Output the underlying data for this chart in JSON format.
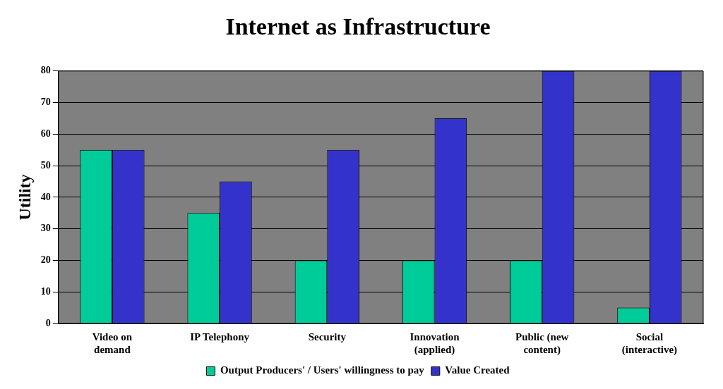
{
  "chart_data": {
    "type": "bar",
    "title": "Internet as Infrastructure",
    "ylabel": "Utility",
    "categories": [
      "Video on demand",
      "IP Telephony",
      "Security",
      "Innovation (applied)",
      "Public (new content)",
      "Social (interactive)"
    ],
    "series": [
      {
        "name": "Output Producers' / Users' willingness to pay",
        "color": "#00cc99",
        "values": [
          55,
          35,
          20,
          20,
          20,
          5
        ]
      },
      {
        "name": "Value Created",
        "color": "#3333cc",
        "values": [
          55,
          45,
          55,
          65,
          80,
          80
        ]
      }
    ],
    "ylim": [
      0,
      80
    ],
    "yticks": [
      0,
      10,
      20,
      30,
      40,
      50,
      60,
      70,
      80
    ],
    "grid": "y",
    "legend": "bottom"
  }
}
